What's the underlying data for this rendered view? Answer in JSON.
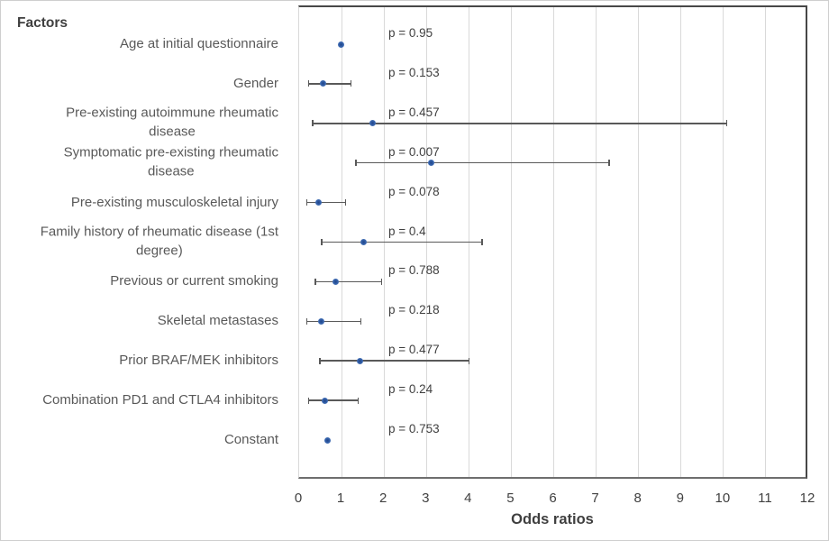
{
  "title": "Factors",
  "chart_data": {
    "type": "scatter",
    "subtype": "forest-plot-odds-ratios",
    "xlabel": "Odds ratios",
    "xlim": [
      0,
      12
    ],
    "x_tick_labels": [
      "0",
      "1",
      "2",
      "3",
      "4",
      "5",
      "6",
      "7",
      "8",
      "9",
      "10",
      "11",
      "12"
    ],
    "grid": "vertical-major",
    "rows": [
      {
        "label": "Age at initial questionnaire",
        "or": 1.0,
        "ci_lo": null,
        "ci_hi": null,
        "p_label": "p = 0.95"
      },
      {
        "label": "Gender",
        "or": 0.58,
        "ci_lo": 0.25,
        "ci_hi": 1.24,
        "p_label": "p = 0.153"
      },
      {
        "label": "Pre-existing autoimmune rheumatic\ndisease",
        "or": 1.75,
        "ci_lo": 0.34,
        "ci_hi": 10.1,
        "p_label": "p = 0.457"
      },
      {
        "label": "Symptomatic pre-existing rheumatic\ndisease",
        "or": 3.14,
        "ci_lo": 1.36,
        "ci_hi": 7.33,
        "p_label": "p = 0.007"
      },
      {
        "label": "Pre-existing musculoskeletal injury",
        "or": 0.48,
        "ci_lo": 0.2,
        "ci_hi": 1.11,
        "p_label": "p = 0.078"
      },
      {
        "label": "Family history of rheumatic disease (1st\ndegree)",
        "or": 1.55,
        "ci_lo": 0.55,
        "ci_hi": 4.33,
        "p_label": "p = 0.4"
      },
      {
        "label": "Previous or current smoking",
        "or": 0.89,
        "ci_lo": 0.4,
        "ci_hi": 1.96,
        "p_label": "p = 0.788"
      },
      {
        "label": "Skeletal metastases",
        "or": 0.54,
        "ci_lo": 0.2,
        "ci_hi": 1.48,
        "p_label": "p = 0.218"
      },
      {
        "label": "Prior BRAF/MEK inhibitors",
        "or": 1.45,
        "ci_lo": 0.51,
        "ci_hi": 4.03,
        "p_label": "p = 0.477"
      },
      {
        "label": "Combination PD1 and CTLA4 inhibitors",
        "or": 0.62,
        "ci_lo": 0.25,
        "ci_hi": 1.41,
        "p_label": "p = 0.24"
      },
      {
        "label": "Constant",
        "or": 0.69,
        "ci_lo": null,
        "ci_hi": null,
        "p_label": "p = 0.753"
      }
    ]
  },
  "colors": {
    "point": "#3765ae",
    "point_center": "#1f4489",
    "error_bar": "#595959",
    "gridline": "#d9d9d9",
    "frame": "#474747",
    "axis_line": "#6e6e6e",
    "label_text": "#595959",
    "dark_text": "#3f3f3f"
  }
}
